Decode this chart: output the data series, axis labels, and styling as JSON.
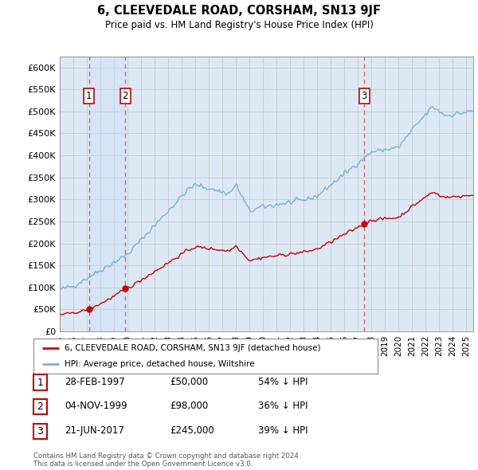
{
  "title": "6, CLEEVEDALE ROAD, CORSHAM, SN13 9JF",
  "subtitle": "Price paid vs. HM Land Registry's House Price Index (HPI)",
  "background_color": "#ffffff",
  "plot_bg_color": "#dce9f5",
  "yticks": [
    0,
    50000,
    100000,
    150000,
    200000,
    250000,
    300000,
    350000,
    400000,
    450000,
    500000,
    550000,
    600000
  ],
  "ytick_labels": [
    "£0",
    "£50K",
    "£100K",
    "£150K",
    "£200K",
    "£250K",
    "£300K",
    "£350K",
    "£400K",
    "£450K",
    "£500K",
    "£550K",
    "£600K"
  ],
  "xmin": 1995.0,
  "xmax": 2025.5,
  "ymin": 0,
  "ymax": 625000,
  "hpi_color": "#7ab3d4",
  "price_color": "#cc0000",
  "grid_color": "#bbbbbb",
  "shade_color": "#ddeeff",
  "dashed_line_color": "#dd5555",
  "sale_points": [
    {
      "year": 1997.15,
      "price": 50000,
      "label": "1"
    },
    {
      "year": 1999.84,
      "price": 98000,
      "label": "2"
    },
    {
      "year": 2017.47,
      "price": 245000,
      "label": "3"
    }
  ],
  "legend_entries": [
    "6, CLEEVEDALE ROAD, CORSHAM, SN13 9JF (detached house)",
    "HPI: Average price, detached house, Wiltshire"
  ],
  "table_rows": [
    {
      "num": "1",
      "date": "28-FEB-1997",
      "price": "£50,000",
      "hpi": "54% ↓ HPI"
    },
    {
      "num": "2",
      "date": "04-NOV-1999",
      "price": "£98,000",
      "hpi": "36% ↓ HPI"
    },
    {
      "num": "3",
      "date": "21-JUN-2017",
      "price": "£245,000",
      "hpi": "39% ↓ HPI"
    }
  ],
  "footer": "Contains HM Land Registry data © Crown copyright and database right 2024.\nThis data is licensed under the Open Government Licence v3.0."
}
